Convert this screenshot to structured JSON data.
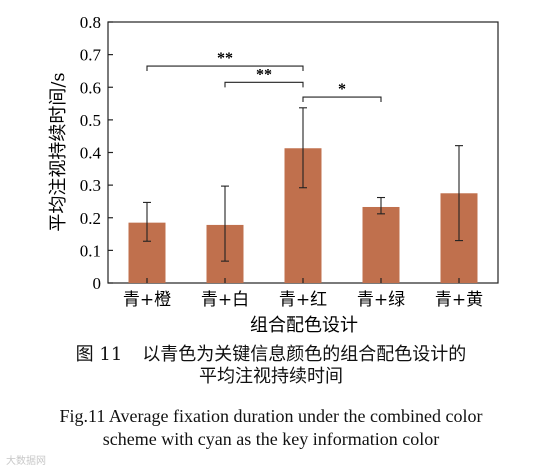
{
  "chart_data": {
    "type": "bar",
    "categories": [
      "青+橙",
      "青+白",
      "青+红",
      "青+绿",
      "青+黄"
    ],
    "values": [
      0.185,
      0.178,
      0.413,
      0.233,
      0.275
    ],
    "error_low": [
      0.128,
      0.067,
      0.292,
      0.212,
      0.13
    ],
    "error_high": [
      0.247,
      0.297,
      0.537,
      0.262,
      0.421
    ],
    "ylabel": "平均注视持续时间/s",
    "xlabel": "组合配色设计",
    "ylim": [
      0,
      0.8
    ],
    "yticks": [
      0,
      0.1,
      0.2,
      0.3,
      0.4,
      0.5,
      0.6,
      0.7,
      0.8
    ],
    "ytick_labels": [
      "0",
      "0.1",
      "0.2",
      "0.3",
      "0.4",
      "0.5",
      "0.6",
      "0.7",
      "0.8"
    ],
    "bar_color": "#c0704d",
    "grid": false,
    "significance": [
      {
        "from": 0,
        "to": 2,
        "level": 0.665,
        "label": "**"
      },
      {
        "from": 1,
        "to": 2,
        "level": 0.615,
        "label": "**"
      },
      {
        "from": 2,
        "to": 3,
        "level": 0.57,
        "label": "*"
      }
    ]
  },
  "caption": {
    "fig_label_cn": "图 11",
    "title_cn_line1": "以青色为关键信息颜色的组合配色设计的",
    "title_cn_line2": "平均注视持续时间",
    "title_en_line1": "Fig.11 Average fixation duration under the combined color",
    "title_en_line2": "scheme with cyan as the key information color"
  },
  "watermark": "大数据网"
}
